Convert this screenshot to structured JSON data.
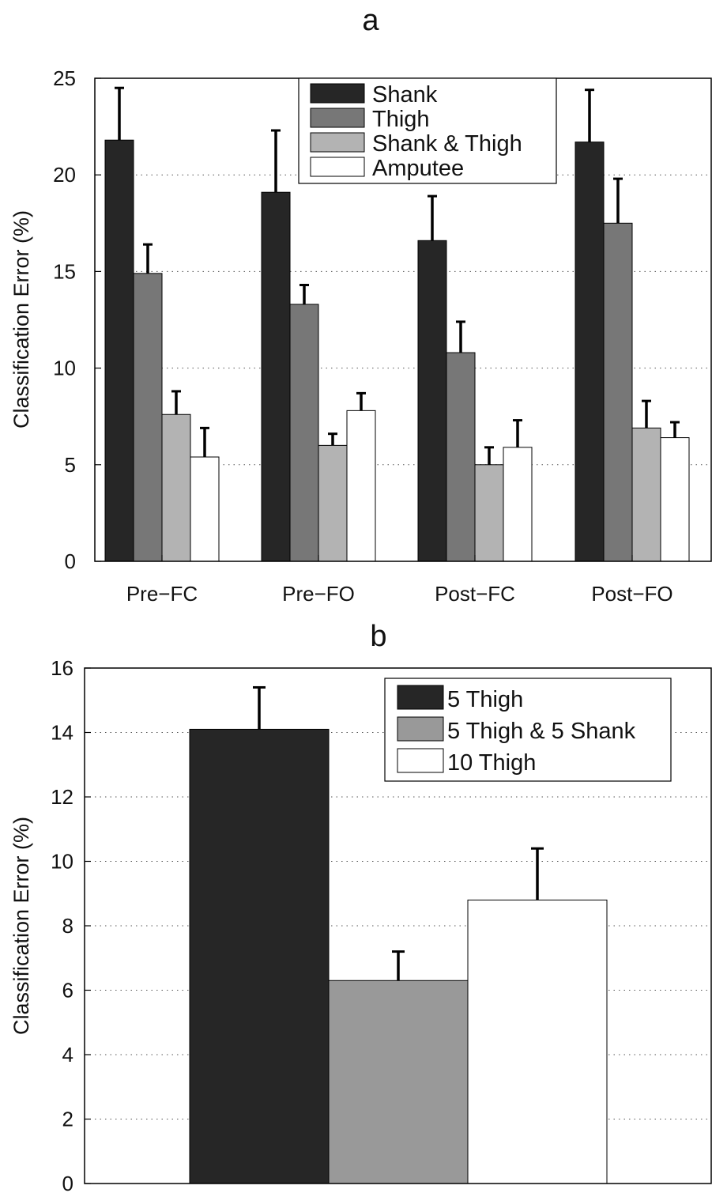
{
  "chart_data": [
    {
      "type": "bar",
      "title": "a",
      "ylabel": "Classification Error (%)",
      "ylim": [
        0,
        25
      ],
      "yticks": [
        "0",
        "5",
        "10",
        "15",
        "20",
        "25"
      ],
      "grid": "horizontal dotted",
      "legend_position": "top-center",
      "categories": [
        "Pre−FC",
        "Pre−FO",
        "Post−FC",
        "Post−FO"
      ],
      "series": [
        {
          "name": "Shank",
          "color": "#262626",
          "values": [
            21.8,
            19.1,
            16.6,
            21.7
          ],
          "errors": [
            2.7,
            3.2,
            2.3,
            2.7
          ]
        },
        {
          "name": "Thigh",
          "color": "#777777",
          "values": [
            14.9,
            13.3,
            10.8,
            17.5
          ],
          "errors": [
            1.5,
            1.0,
            1.6,
            2.3
          ]
        },
        {
          "name": "Shank & Thigh",
          "color": "#b3b3b3",
          "values": [
            7.6,
            6.0,
            5.0,
            6.9
          ],
          "errors": [
            1.2,
            0.6,
            0.9,
            1.4
          ]
        },
        {
          "name": "Amputee",
          "color": "#ffffff",
          "values": [
            5.4,
            7.8,
            5.9,
            6.4
          ],
          "errors": [
            1.5,
            0.9,
            1.4,
            0.8
          ]
        }
      ]
    },
    {
      "type": "bar",
      "title": "b",
      "ylabel": "Classification Error (%)",
      "ylim": [
        0,
        16
      ],
      "yticks": [
        "0",
        "2",
        "4",
        "6",
        "8",
        "10",
        "12",
        "14",
        "16"
      ],
      "grid": "horizontal dotted",
      "legend_position": "top-right",
      "series": [
        {
          "name": "5 Thigh",
          "color": "#262626",
          "value": 14.1,
          "error": 1.3
        },
        {
          "name": "5 Thigh & 5 Shank",
          "color": "#999999",
          "value": 6.3,
          "error": 0.9
        },
        {
          "name": "10 Thigh",
          "color": "#ffffff",
          "value": 8.8,
          "error": 1.6
        }
      ]
    }
  ]
}
